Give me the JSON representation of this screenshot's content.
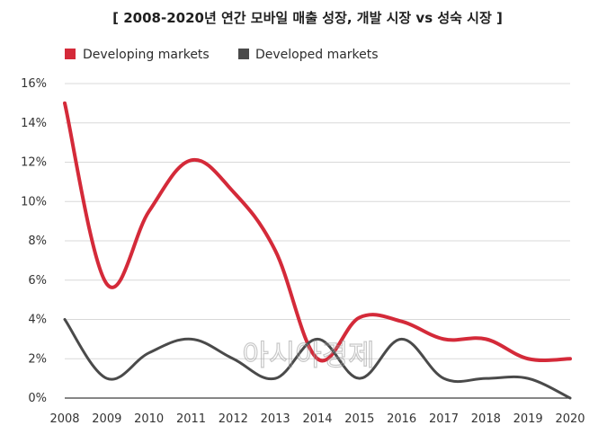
{
  "chart_data": {
    "type": "line",
    "title": "[ 2008-2020년 연간 모바일 매출 성장, 개발 시장 vs 성숙 시장 ]",
    "xlabel": "",
    "ylabel": "",
    "categories": [
      "2008",
      "2009",
      "2010",
      "2011",
      "2012",
      "2013",
      "2014",
      "2015",
      "2016",
      "2017",
      "2018",
      "2019",
      "2020"
    ],
    "ylim": [
      0,
      16
    ],
    "yticks": [
      "0%",
      "2%",
      "4%",
      "6%",
      "8%",
      "10%",
      "12%",
      "14%",
      "16%"
    ],
    "grid": true,
    "legend_position": "top-left",
    "series": [
      {
        "name": "Developing markets",
        "color": "#d42a39",
        "values": [
          15.0,
          5.8,
          9.5,
          12.1,
          10.5,
          7.5,
          2.0,
          4.1,
          3.9,
          3.0,
          3.0,
          2.0,
          2.0
        ]
      },
      {
        "name": "Developed markets",
        "color": "#4a4a4a",
        "values": [
          4.0,
          1.0,
          2.3,
          3.0,
          2.0,
          1.0,
          3.0,
          1.0,
          3.0,
          1.0,
          1.0,
          1.0,
          0.0
        ]
      }
    ],
    "watermark": "아시아경제"
  }
}
